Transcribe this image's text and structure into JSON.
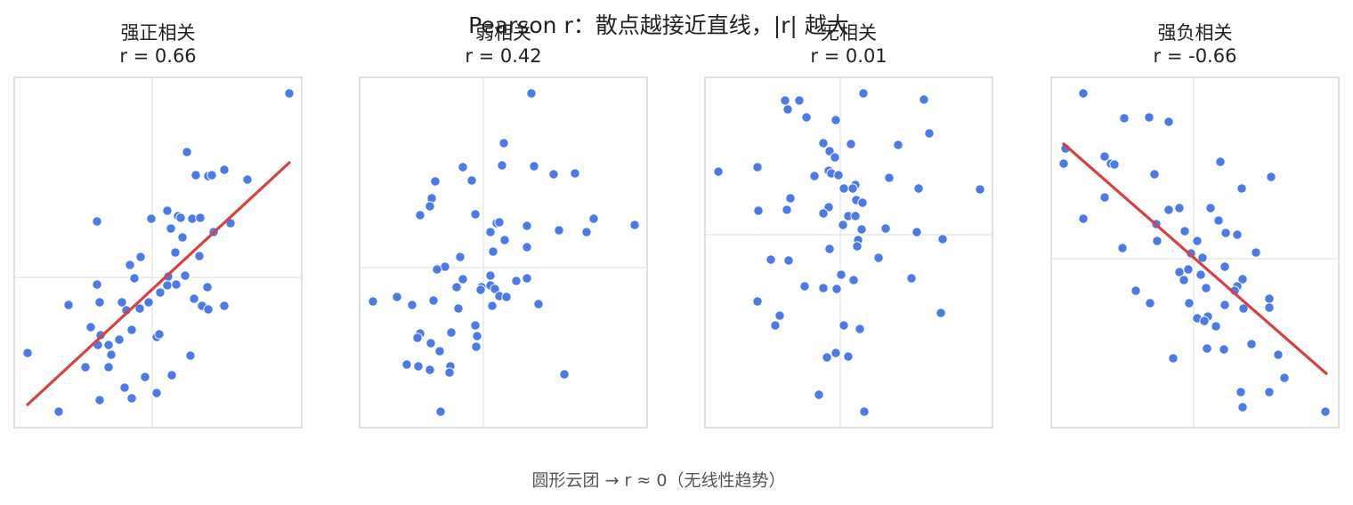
{
  "title": "Pearson r：散点越接近直线，|r| 越大",
  "annotation": "圆形云团 → r ≈ 0（无线性趋势）",
  "chart_data": [
    {
      "type": "scatter",
      "title": "强正相关",
      "subtitle": "r = 0.66",
      "color": "#4c7be8",
      "xlim": [
        -155,
        168
      ],
      "ylim": [
        -169,
        225
      ],
      "vline": 0,
      "hline": 0,
      "x": [
        154,
        39,
        49,
        63,
        67,
        81,
        107,
        -62,
        -1,
        17,
        29,
        32,
        45,
        54,
        88,
        69,
        34,
        21,
        26,
        53,
        -13,
        -25,
        -20,
        37,
        18,
        17,
        27,
        9,
        62,
        -62,
        -94,
        -59,
        -34,
        -29,
        -14,
        -4,
        47,
        56,
        63,
        81,
        -69,
        -58,
        -23,
        -61,
        -49,
        -37,
        5,
        8,
        -46,
        -140,
        43,
        -75,
        -49,
        -8,
        22,
        -31,
        -23,
        5,
        -59,
        -105
      ],
      "values": [
        207,
        141,
        115,
        114,
        115,
        121,
        110,
        63,
        66,
        75,
        69,
        67,
        66,
        67,
        61,
        51,
        45,
        55,
        28,
        24,
        23,
        14,
        -1,
        2,
        1,
        -9,
        -8,
        -17,
        -11,
        -8,
        -31,
        -28,
        -28,
        -37,
        -35,
        -28,
        -24,
        -32,
        -36,
        -32,
        -56,
        -65,
        -59,
        -76,
        -76,
        -70,
        -67,
        -64,
        -87,
        -85,
        -88,
        -101,
        -101,
        -112,
        -110,
        -124,
        -136,
        -130,
        -138,
        -151
      ],
      "fit": {
        "x": [
          -141,
          155
        ],
        "y": [
          -144,
          130
        ],
        "color": "#d94141"
      }
    },
    {
      "type": "scatter",
      "title": "弱相关",
      "subtitle": "r = 0.42",
      "color": "#4c7be8",
      "xlim": [
        -139,
        184
      ],
      "ylim": [
        -180,
        214
      ],
      "vline": 0,
      "hline": 0,
      "x": [
        54,
        23,
        -23,
        21,
        57,
        79,
        103,
        -54,
        -13,
        -58,
        -60,
        -71,
        -9,
        15,
        18,
        49,
        85,
        124,
        116,
        170,
        8,
        24,
        49,
        11,
        -26,
        -43,
        -52,
        8,
        -23,
        49,
        37,
        -30,
        -2,
        8,
        -3,
        13,
        18,
        26,
        -124,
        -97,
        -80,
        -56,
        -28,
        10,
        62,
        -9,
        -36,
        -71,
        -74,
        -59,
        -7,
        -49,
        -8,
        -86,
        -73,
        -60,
        -37,
        -38,
        91,
        -48
      ],
      "values": [
        196,
        140,
        113,
        115,
        114,
        105,
        106,
        97,
        98,
        78,
        69,
        59,
        60,
        50,
        51,
        47,
        42,
        55,
        40,
        48,
        40,
        31,
        23,
        18,
        12,
        1,
        -2,
        -9,
        -13,
        -12,
        -15,
        -22,
        -22,
        -20,
        -25,
        -24,
        -32,
        -33,
        -38,
        -33,
        -42,
        -37,
        -46,
        -43,
        -41,
        -65,
        -73,
        -74,
        -79,
        -85,
        -77,
        -94,
        -89,
        -109,
        -111,
        -115,
        -111,
        -118,
        -120,
        -162
      ]
    },
    {
      "type": "scatter",
      "title": "无相关",
      "subtitle": "r = 0.01",
      "color": "#4c7be8",
      "xlim": [
        -152,
        171
      ],
      "ylim": [
        -217,
        177
      ],
      "vline": 0,
      "hline": 0,
      "x": [
        -62,
        -46,
        26,
        94,
        -59,
        -38,
        -5,
        100,
        -19,
        12,
        65,
        -12,
        -6,
        -137,
        -93,
        -13,
        -10,
        -29,
        -2,
        55,
        17,
        14,
        4,
        157,
        88,
        -56,
        18,
        25,
        -60,
        -13,
        -92,
        -19,
        9,
        17,
        3,
        24,
        51,
        86,
        20,
        115,
        19,
        -12,
        -78,
        -58,
        43,
        1,
        15,
        80,
        -40,
        -19,
        -4,
        -93,
        113,
        -68,
        -73,
        4,
        22,
        -5,
        -15,
        9,
        -24,
        27
      ],
      "values": [
        151,
        151,
        159,
        152,
        141,
        132,
        129,
        114,
        103,
        102,
        101,
        94,
        87,
        71,
        76,
        72,
        69,
        66,
        67,
        64,
        56,
        52,
        52,
        51,
        52,
        41,
        39,
        36,
        28,
        31,
        27,
        24,
        21,
        21,
        11,
        6,
        7,
        3,
        -6,
        -5,
        -13,
        -16,
        -28,
        -29,
        -26,
        -45,
        -51,
        -49,
        -58,
        -60,
        -61,
        -75,
        -88,
        -91,
        -102,
        -102,
        -106,
        -133,
        -138,
        -137,
        -180,
        -199
      ]
    },
    {
      "type": "scatter",
      "title": "强负相关",
      "subtitle": "r = -0.66",
      "color": "#4c7be8",
      "xlim": [
        -160,
        163
      ],
      "ylim": [
        -190,
        204
      ],
      "vline": 0,
      "hline": 0,
      "x": [
        -124,
        -78,
        -50,
        -28,
        -144,
        -100,
        -93,
        -89,
        -146,
        30,
        -44,
        87,
        54,
        -100,
        -28,
        -16,
        19,
        -124,
        -42,
        28,
        -10,
        36,
        49,
        4,
        -41,
        -3,
        -80,
        70,
        10,
        35,
        -6,
        -16,
        8,
        -11,
        55,
        49,
        14,
        46,
        -65,
        85,
        -49,
        -5,
        35,
        56,
        85,
        4,
        16,
        12,
        25,
        65,
        15,
        34,
        95,
        -23,
        102,
        53,
        85,
        55,
        148
      ],
      "values": [
        186,
        158,
        159,
        154,
        124,
        115,
        107,
        106,
        107,
        109,
        95,
        92,
        79,
        69,
        55,
        57,
        57,
        45,
        39,
        43,
        31,
        29,
        27,
        20,
        20,
        6,
        12,
        7,
        1,
        -9,
        -12,
        -15,
        -18,
        -24,
        -23,
        -31,
        -33,
        -36,
        -36,
        -45,
        -50,
        -50,
        -52,
        -56,
        -55,
        -67,
        -65,
        -70,
        -76,
        -96,
        -101,
        -102,
        -108,
        -112,
        -134,
        -150,
        -150,
        -167,
        -172
      ],
      "fit": {
        "x": [
          -147,
          150
        ],
        "y": [
          130,
          -130
        ],
        "color": "#d94141"
      }
    }
  ]
}
